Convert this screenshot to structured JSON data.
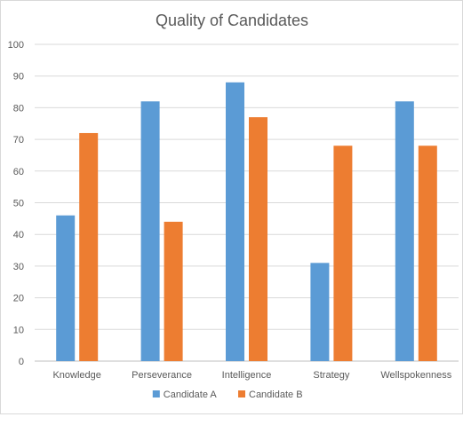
{
  "chart_data": {
    "type": "bar",
    "title": "Quality of Candidates",
    "categories": [
      "Knowledge",
      "Perseverance",
      "Intelligence",
      "Strategy",
      "Wellspokenness"
    ],
    "series": [
      {
        "name": "Candidate A",
        "values": [
          46,
          82,
          88,
          31,
          82
        ],
        "color": "#5b9bd5"
      },
      {
        "name": "Candidate B",
        "values": [
          72,
          44,
          77,
          68,
          68
        ],
        "color": "#ed7d31"
      }
    ],
    "ylim": [
      0,
      100
    ],
    "yticks": [
      "0",
      "10",
      "20",
      "30",
      "40",
      "50",
      "60",
      "70",
      "80",
      "90",
      "100"
    ],
    "grid": true,
    "legend_position": "bottom"
  }
}
